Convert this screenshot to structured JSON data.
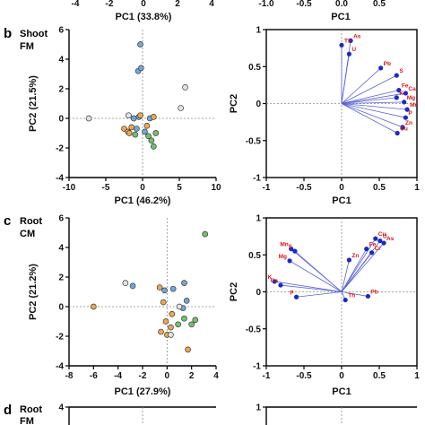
{
  "figure": {
    "top_strip": {
      "left_ticks": [
        "-4",
        "-2",
        "0",
        "2",
        "4"
      ],
      "left_xlabel": "PC1 (33.8%)",
      "right_ticks": [
        "-1.0",
        "-0.5",
        "0.0",
        "0.5"
      ],
      "right_xlabel": "PC1"
    },
    "panels": [
      {
        "letter": "b",
        "tag_line1": "Shoot",
        "tag_line2": "FM"
      },
      {
        "letter": "c",
        "tag_line1": "Root",
        "tag_line2": "CM"
      },
      {
        "letter": "d",
        "tag_line1": "Root",
        "tag_line2": "FM"
      }
    ],
    "colors": {
      "blue": "#6fa8dc",
      "orange": "#f0a64e",
      "green": "#6fc26a",
      "grey": "#e2e2e2",
      "loading_line": "#5a63d6",
      "loading_dot": "#1a29c9",
      "loading_label": "#d8141c"
    }
  },
  "chart_data": [
    {
      "type": "scatter",
      "panel": "b-left",
      "xlabel": "PC1 (46.2%)",
      "ylabel": "PC2 (21.5%)",
      "xlim": [
        -10,
        10
      ],
      "ylim": [
        -4,
        6
      ],
      "xticks": [
        -10,
        -5,
        0,
        5,
        10
      ],
      "yticks": [
        -4,
        -2,
        0,
        2,
        4,
        6
      ],
      "series": [
        {
          "color": "blue",
          "points": [
            [
              -0.3,
              5.0
            ],
            [
              -0.6,
              3.2
            ],
            [
              -0.2,
              3.4
            ],
            [
              -1.2,
              0.0
            ],
            [
              -0.5,
              0.1
            ],
            [
              1.0,
              0.0
            ],
            [
              -0.8,
              -0.7
            ],
            [
              0.3,
              -0.9
            ]
          ]
        },
        {
          "color": "orange",
          "points": [
            [
              -2.5,
              -0.7
            ],
            [
              -2.0,
              -0.9
            ],
            [
              -1.5,
              -0.6
            ],
            [
              -1.8,
              -1.0
            ],
            [
              0.6,
              -0.5
            ],
            [
              1.5,
              0.1
            ],
            [
              -0.3,
              0.2
            ]
          ]
        },
        {
          "color": "green",
          "points": [
            [
              -1.0,
              -1.1
            ],
            [
              0.8,
              -1.2
            ],
            [
              1.2,
              -1.5
            ],
            [
              1.5,
              -1.9
            ],
            [
              1.8,
              -1.0
            ]
          ]
        },
        {
          "color": "grey",
          "points": [
            [
              -7.3,
              0.0
            ],
            [
              -1.9,
              0.2
            ],
            [
              5.8,
              2.1
            ],
            [
              5.2,
              0.7
            ]
          ]
        }
      ]
    },
    {
      "type": "scatter",
      "panel": "b-right",
      "xlabel": "PC1",
      "ylabel": "PC2",
      "xlim": [
        -1.0,
        1.0
      ],
      "ylim": [
        -1.0,
        1.0
      ],
      "xticks": [
        -1.0,
        -0.5,
        0.0,
        0.5,
        1.0
      ],
      "yticks": [
        -1.0,
        -0.5,
        0.0,
        0.5,
        1.0
      ],
      "loadings": [
        {
          "label": "As",
          "x": 0.12,
          "y": 0.85
        },
        {
          "label": "Th",
          "x": 0.0,
          "y": 0.79
        },
        {
          "label": "U",
          "x": 0.1,
          "y": 0.67
        },
        {
          "label": "Pb",
          "x": 0.52,
          "y": 0.48
        },
        {
          "label": "S",
          "x": 0.73,
          "y": 0.38
        },
        {
          "label": "Fe",
          "x": 0.76,
          "y": 0.18
        },
        {
          "label": "Ca",
          "x": 0.85,
          "y": 0.14
        },
        {
          "label": "K",
          "x": 0.73,
          "y": 0.08
        },
        {
          "label": "Mg",
          "x": 0.83,
          "y": 0.02
        },
        {
          "label": "Mn",
          "x": 0.87,
          "y": -0.08
        },
        {
          "label": "P",
          "x": 0.85,
          "y": -0.19
        },
        {
          "label": "Zn",
          "x": 0.81,
          "y": -0.32
        },
        {
          "label": "Cu",
          "x": 0.74,
          "y": -0.4
        }
      ]
    },
    {
      "type": "scatter",
      "panel": "c-left",
      "xlabel": "PC1 (27.9%)",
      "ylabel": "PC2 (21.2%)",
      "xlim": [
        -8,
        4
      ],
      "ylim": [
        -4,
        6
      ],
      "xticks": [
        -8,
        -6,
        -4,
        -2,
        0,
        2,
        4
      ],
      "yticks": [
        -4,
        -2,
        0,
        2,
        4,
        6
      ],
      "series": [
        {
          "color": "green",
          "points": [
            [
              3.1,
              4.9
            ],
            [
              2.3,
              -0.9
            ],
            [
              2.0,
              -1.2
            ],
            [
              1.4,
              -0.8
            ],
            [
              0.9,
              -1.2
            ]
          ]
        },
        {
          "color": "blue",
          "points": [
            [
              -2.8,
              1.4
            ],
            [
              -0.2,
              1.1
            ],
            [
              1.4,
              1.6
            ],
            [
              0.5,
              1.2
            ],
            [
              1.6,
              0.4
            ],
            [
              1.3,
              -0.1
            ]
          ]
        },
        {
          "color": "orange",
          "points": [
            [
              -6.0,
              0.0
            ],
            [
              -0.6,
              1.3
            ],
            [
              -0.3,
              0.3
            ],
            [
              0.4,
              -0.5
            ],
            [
              -0.1,
              -1.0
            ],
            [
              0.3,
              -1.4
            ],
            [
              0.0,
              -1.9
            ],
            [
              -0.5,
              -1.7
            ],
            [
              1.7,
              -2.9
            ]
          ]
        },
        {
          "color": "grey",
          "points": [
            [
              -3.4,
              1.6
            ],
            [
              1.0,
              0.0
            ],
            [
              0.3,
              -1.9
            ]
          ]
        }
      ]
    },
    {
      "type": "scatter",
      "panel": "c-right",
      "xlabel": "PC1",
      "ylabel": "PC2",
      "xlim": [
        -1.0,
        1.0
      ],
      "ylim": [
        -1.0,
        1.0
      ],
      "xticks": [
        -1.0,
        -0.5,
        0.0,
        0.5,
        1.0
      ],
      "yticks": [
        -1.0,
        -0.5,
        0.0,
        0.5,
        1.0
      ],
      "loadings": [
        {
          "label": "Cu",
          "x": 0.45,
          "y": 0.72
        },
        {
          "label": "U",
          "x": 0.51,
          "y": 0.69
        },
        {
          "label": "As",
          "x": 0.56,
          "y": 0.66
        },
        {
          "label": "Fe",
          "x": 0.33,
          "y": 0.58
        },
        {
          "label": "Cr",
          "x": 0.4,
          "y": 0.53
        },
        {
          "label": "Zn",
          "x": 0.1,
          "y": 0.43
        },
        {
          "label": "Mn",
          "x": -0.67,
          "y": 0.58
        },
        {
          "label": "S",
          "x": -0.62,
          "y": 0.55
        },
        {
          "label": "Mg",
          "x": -0.69,
          "y": 0.42
        },
        {
          "label": "K",
          "x": -0.89,
          "y": 0.14
        },
        {
          "label": "Ca",
          "x": -0.81,
          "y": 0.09
        },
        {
          "label": "P",
          "x": -0.6,
          "y": -0.07
        },
        {
          "label": "Pb",
          "x": 0.35,
          "y": -0.06
        },
        {
          "label": "Th",
          "x": 0.05,
          "y": -0.11
        }
      ]
    },
    {
      "type": "scatter",
      "panel": "d-left",
      "xlabel": "",
      "ylabel": "",
      "yticks": [
        4
      ],
      "series": []
    },
    {
      "type": "scatter",
      "panel": "d-right",
      "xlabel": "",
      "ylabel": "",
      "yticks": [
        1.0
      ],
      "loadings": []
    }
  ]
}
